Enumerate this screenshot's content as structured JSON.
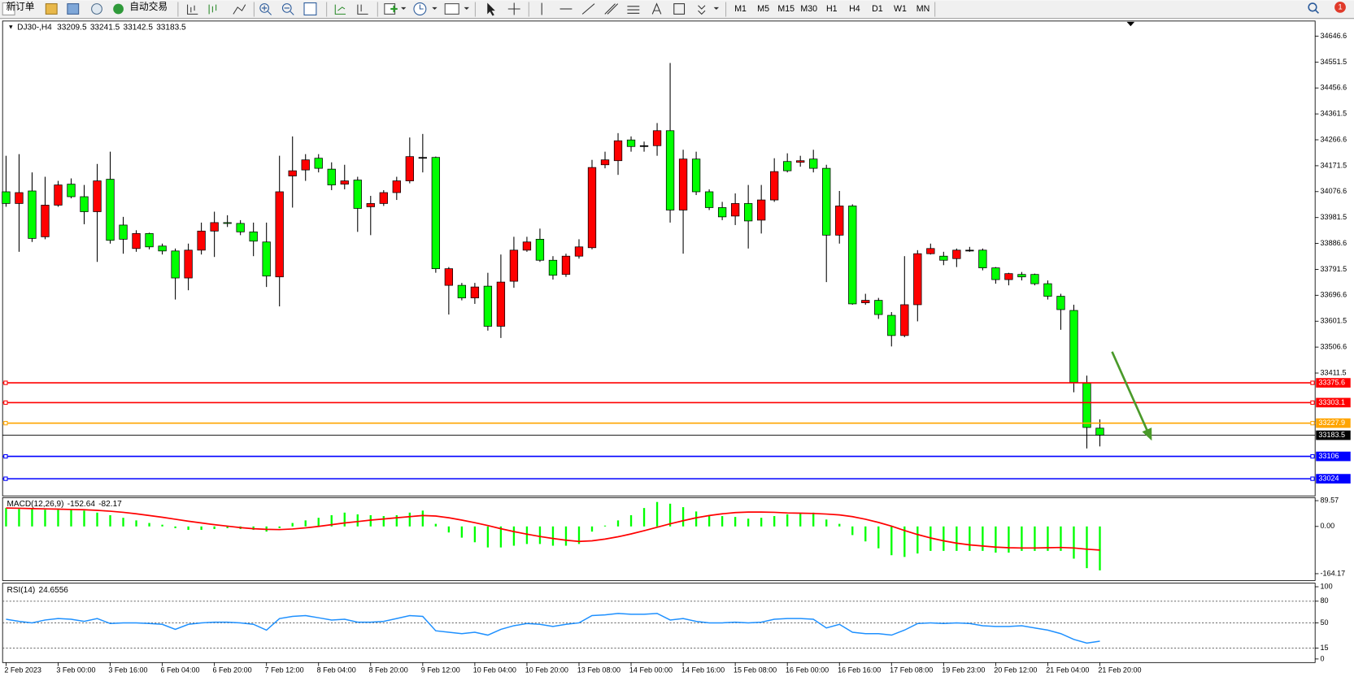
{
  "toolbar": {
    "buttons": [
      "新订单",
      "自动交易"
    ],
    "timeframes": [
      "M1",
      "M5",
      "M15",
      "M30",
      "H1",
      "H4",
      "D1",
      "W1",
      "MN"
    ],
    "notification": "1"
  },
  "chart_data": [
    {
      "type": "candlestick",
      "title": "DJ30-,H4",
      "categories": [
        "2 Feb 2023",
        null,
        null,
        null,
        "3 Feb 00:00",
        null,
        null,
        null,
        "3 Feb 16:00",
        null,
        null,
        null,
        "6 Feb 04:00",
        null,
        null,
        null,
        "6 Feb 20:00",
        null,
        null,
        null,
        "7 Feb 12:00",
        null,
        null,
        null,
        "8 Feb 04:00",
        null,
        null,
        null,
        "8 Feb 20:00",
        null,
        null,
        null,
        "9 Feb 12:00",
        null,
        null,
        null,
        "10 Feb 04:00",
        null,
        null,
        null,
        "10 Feb 20:00",
        null,
        null,
        null,
        "13 Feb 08:00",
        null,
        null,
        null,
        "14 Feb 00:00",
        null,
        null,
        null,
        "14 Feb 16:00",
        null,
        null,
        null,
        "15 Feb 08:00",
        null,
        null,
        null,
        "16 Feb 00:00",
        null,
        null,
        null,
        "16 Feb 16:00",
        null,
        null,
        null,
        "17 Feb 08:00",
        null,
        null,
        null,
        "19 Feb 23:00",
        null,
        null,
        null,
        "20 Feb 12:00",
        null,
        null,
        null,
        "21 Feb 04:00",
        null,
        null,
        null,
        "21 Feb 20:00"
      ],
      "open": [
        34076,
        34033,
        34079,
        33911,
        34027,
        34104,
        34058,
        34003,
        34122,
        33954,
        33868,
        33923,
        33877,
        33859,
        33760,
        33862,
        33932,
        33963,
        33960,
        33929,
        33892,
        33764,
        34134,
        34156,
        34199,
        34159,
        34104,
        34119,
        34021,
        34033,
        34073,
        34116,
        34202,
        34202,
        33733,
        33733,
        33687,
        33730,
        33583,
        33748,
        33862,
        33902,
        33825,
        33773,
        33840,
        33871,
        34175,
        34190,
        34266,
        34245,
        34245,
        34300,
        34009,
        34196,
        34076,
        34018,
        33987,
        34033,
        33972,
        34046,
        34187,
        34184,
        34196,
        34162,
        33917,
        34024,
        33669,
        33678,
        33623,
        33549,
        33662,
        33849,
        33840,
        33831,
        33862,
        33862,
        33797,
        33754,
        33773,
        33773,
        33739,
        33693,
        33641,
        33374,
        33209.5
      ],
      "high": [
        34208,
        34214,
        34147,
        34131,
        34116,
        34125,
        34101,
        34178,
        34223,
        33984,
        33935,
        33926,
        33886,
        33868,
        33886,
        33963,
        34003,
        33990,
        33972,
        33963,
        33963,
        34208,
        34279,
        34214,
        34214,
        34184,
        34175,
        34131,
        34061,
        34082,
        34131,
        34275,
        34288,
        34205,
        33800,
        33742,
        33742,
        33779,
        33846,
        33911,
        33911,
        33941,
        33840,
        33849,
        33902,
        34193,
        34223,
        34291,
        34279,
        34260,
        34328,
        34548,
        34230,
        34223,
        34085,
        34039,
        34070,
        34101,
        34101,
        34199,
        34217,
        34208,
        34230,
        34175,
        34079,
        34030,
        33702,
        33687,
        33635,
        33840,
        33862,
        33886,
        33856,
        33868,
        33874,
        33868,
        33800,
        33779,
        33782,
        33776,
        33751,
        33702,
        33662,
        33402,
        33241.5
      ],
      "low": [
        34021,
        33856,
        33892,
        33902,
        34021,
        34052,
        33957,
        33819,
        33886,
        33849,
        33856,
        33865,
        33846,
        33681,
        33715,
        33846,
        33837,
        33947,
        33917,
        33840,
        33727,
        33656,
        34018,
        34116,
        34147,
        34082,
        34085,
        33929,
        33917,
        34024,
        34046,
        34107,
        34147,
        33779,
        33626,
        33678,
        33665,
        33567,
        33540,
        33724,
        33856,
        33819,
        33754,
        33764,
        33831,
        33865,
        34162,
        34138,
        34223,
        34223,
        34208,
        33963,
        33849,
        34064,
        34009,
        33972,
        33954,
        33868,
        33923,
        34039,
        34147,
        34168,
        34147,
        33745,
        33886,
        33662,
        33662,
        33610,
        33509,
        33543,
        33601,
        33846,
        33807,
        33800,
        33856,
        33788,
        33739,
        33733,
        33751,
        33733,
        33681,
        33570,
        33341,
        33135,
        33142.5
      ],
      "close": [
        34033,
        34073,
        33905,
        34027,
        34101,
        34058,
        34003,
        34116,
        33898,
        33902,
        33923,
        33874,
        33859,
        33760,
        33862,
        33932,
        33963,
        33960,
        33929,
        33895,
        33767,
        34076,
        34153,
        34193,
        34162,
        34101,
        34116,
        34015,
        34033,
        34073,
        34116,
        34205,
        34202,
        33794,
        33794,
        33687,
        33727,
        33583,
        33745,
        33862,
        33892,
        33825,
        33770,
        33840,
        33874,
        34165,
        34193,
        34263,
        34242,
        34245,
        34300,
        34009,
        34196,
        34076,
        34018,
        33984,
        34033,
        33969,
        34046,
        34150,
        34153,
        34190,
        34162,
        33917,
        34024,
        33665,
        33678,
        33626,
        33549,
        33662,
        33849,
        33868,
        33825,
        33862,
        33862,
        33797,
        33754,
        33776,
        33764,
        33739,
        33693,
        33644,
        33377,
        33212,
        33183.5
      ],
      "up_color": "#ff0000",
      "down_color": "#00ff00",
      "doji_color": "#000000",
      "ylim": [
        32961,
        34702
      ],
      "yticks": [
        34646.6,
        34551.5,
        34456.6,
        34361.5,
        34266.6,
        34171.5,
        34076.6,
        33981.5,
        33886.6,
        33791.5,
        33696.6,
        33601.5,
        33506.6,
        33411.5
      ],
      "levels": [
        {
          "value": 33375.6,
          "color": "#ff0000"
        },
        {
          "value": 33303.1,
          "color": "#ff0000"
        },
        {
          "value": 33227.9,
          "color": "#ffa500"
        },
        {
          "value": 33106.0,
          "color": "#0000ff"
        },
        {
          "value": 33024.0,
          "color": "#0000ff"
        }
      ]
    },
    {
      "type": "combo",
      "title": "MACD(12,26,9)",
      "series": [
        {
          "type": "bar",
          "color": "#00ff00",
          "values": [
            64,
            61,
            61,
            58,
            58,
            58,
            55,
            48,
            39,
            30,
            21,
            12,
            6,
            -6,
            -12,
            -12,
            -9,
            -6,
            -9,
            -12,
            -18,
            -6,
            12,
            21,
            30,
            39,
            48,
            42,
            39,
            36,
            39,
            48,
            55,
            9,
            -21,
            -39,
            -55,
            -73,
            -73,
            -67,
            -61,
            -61,
            -67,
            -67,
            -61,
            -18,
            3,
            21,
            39,
            64,
            85,
            79,
            67,
            52,
            39,
            36,
            33,
            27,
            30,
            36,
            42,
            45,
            48,
            24,
            9,
            -30,
            -52,
            -76,
            -100,
            -106,
            -94,
            -85,
            -85,
            -85,
            -85,
            -85,
            -91,
            -91,
            -85,
            -85,
            -85,
            -85,
            -112,
            -145,
            -152.64
          ]
        },
        {
          "type": "line",
          "color": "#ff0000",
          "values": [
            64,
            63,
            62,
            61,
            60,
            59,
            58,
            56,
            53,
            49,
            44,
            38,
            32,
            25,
            18,
            12,
            6,
            1,
            -4,
            -8,
            -10,
            -11,
            -9,
            -5,
            0,
            6,
            12,
            17,
            22,
            26,
            30,
            34,
            38,
            36,
            30,
            22,
            13,
            3,
            -8,
            -18,
            -27,
            -35,
            -42,
            -48,
            -52,
            -50,
            -44,
            -36,
            -26,
            -15,
            -3,
            9,
            20,
            30,
            38,
            44,
            48,
            50,
            50,
            49,
            47,
            46,
            45,
            43,
            40,
            34,
            25,
            14,
            1,
            -14,
            -28,
            -40,
            -50,
            -58,
            -64,
            -68,
            -72,
            -74,
            -75,
            -75,
            -74,
            -73,
            -75,
            -79,
            -82.17
          ]
        }
      ],
      "ylim": [
        -188,
        100
      ],
      "yticks": [
        89.57,
        {
          "value": 0,
          "label": "0.00"
        },
        -164.17
      ]
    },
    {
      "type": "line",
      "title": "RSI(14)",
      "series": [
        {
          "color": "#1e90ff",
          "values": [
            55,
            52,
            50,
            54,
            56,
            55,
            52,
            56,
            49,
            50,
            50,
            49,
            48,
            41,
            48,
            50,
            51,
            51,
            50,
            48,
            40,
            56,
            59,
            60,
            57,
            54,
            55,
            51,
            51,
            52,
            56,
            60,
            59,
            39,
            37,
            35,
            37,
            33,
            41,
            46,
            49,
            48,
            45,
            48,
            50,
            60,
            61,
            63,
            62,
            62,
            63,
            54,
            56,
            52,
            50,
            50,
            51,
            50,
            51,
            55,
            56,
            56,
            55,
            43,
            48,
            37,
            35,
            35,
            33,
            40,
            49,
            50,
            49,
            50,
            49,
            46,
            45,
            45,
            46,
            43,
            40,
            35,
            27,
            22,
            24.6556
          ]
        }
      ],
      "ylim": [
        -5,
        105
      ],
      "yticks": [
        100,
        80,
        50,
        15,
        0
      ],
      "levels": [
        80,
        50,
        15
      ]
    }
  ]
}
